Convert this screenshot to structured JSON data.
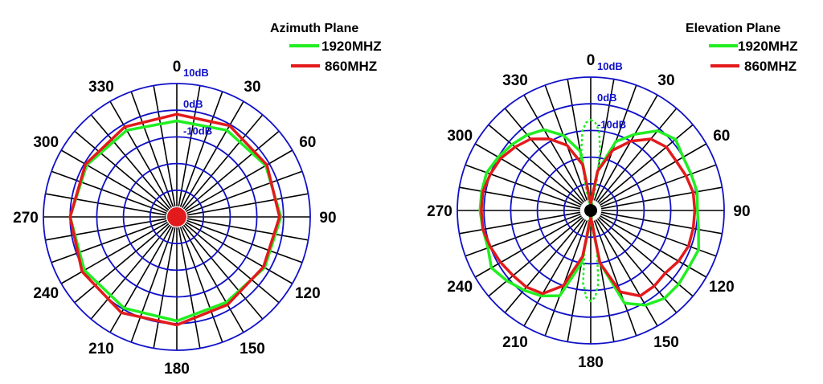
{
  "colors": {
    "ring": "#1010c8",
    "spoke": "#000000",
    "db_text": "#1010c8",
    "series_1920": "#22ee22",
    "series_860": "#e31a1c",
    "background": "#ffffff"
  },
  "chart_data": [
    {
      "type": "polar",
      "title": "Azimuth Plane",
      "angle_labels": [
        "0",
        "30",
        "60",
        "90",
        "120",
        "150",
        "180",
        "210",
        "240",
        "270",
        "300",
        "330"
      ],
      "radial_labels": [
        "10dB",
        "0dB",
        "-10dB"
      ],
      "series": [
        {
          "name": "1920MHZ",
          "color": "#22ee22",
          "style": "solid",
          "theta": [
            0,
            30,
            60,
            90,
            120,
            150,
            180,
            210,
            240,
            270,
            300,
            330
          ],
          "r": [
            0.72,
            0.75,
            0.77,
            0.78,
            0.76,
            0.74,
            0.78,
            0.79,
            0.8,
            0.8,
            0.78,
            0.75
          ]
        },
        {
          "name": "860MHZ",
          "color": "#e31a1c",
          "style": "solid",
          "theta": [
            0,
            30,
            60,
            90,
            120,
            150,
            180,
            210,
            240,
            270,
            300,
            330
          ],
          "r": [
            0.77,
            0.79,
            0.78,
            0.77,
            0.75,
            0.76,
            0.81,
            0.83,
            0.82,
            0.8,
            0.79,
            0.78
          ]
        }
      ],
      "center_dot": {
        "color": "#e31a1c"
      }
    },
    {
      "type": "polar",
      "title": "Elevation Plane",
      "angle_labels": [
        "0",
        "30",
        "60",
        "90",
        "120",
        "150",
        "180",
        "210",
        "240",
        "270",
        "300",
        "330"
      ],
      "radial_labels": [
        "10dB",
        "0dB",
        "-10dB"
      ],
      "series": [
        {
          "name": "1920MHZ",
          "color": "#22ee22",
          "style": "solid",
          "theta": [
            0,
            10,
            20,
            30,
            40,
            50,
            60,
            70,
            80,
            90,
            100,
            110,
            120,
            130,
            140,
            150,
            160,
            170,
            180,
            190,
            200,
            210,
            220,
            230,
            240,
            250,
            260,
            270,
            280,
            290,
            300,
            310,
            320,
            330,
            340,
            350,
            360
          ],
          "r": [
            0.05,
            0.3,
            0.55,
            0.66,
            0.78,
            0.83,
            0.8,
            0.8,
            0.81,
            0.8,
            0.82,
            0.86,
            0.85,
            0.86,
            0.86,
            0.82,
            0.74,
            0.4,
            0.06,
            0.4,
            0.68,
            0.74,
            0.78,
            0.82,
            0.86,
            0.82,
            0.82,
            0.83,
            0.83,
            0.83,
            0.8,
            0.77,
            0.74,
            0.7,
            0.6,
            0.45,
            0.05
          ]
        },
        {
          "name": "1920MHZ (dotted)",
          "color": "#22ee22",
          "style": "dotted",
          "theta": [
            0,
            3,
            6,
            9,
            12,
            15,
            168,
            171,
            174,
            177,
            180,
            183,
            186,
            189,
            192,
            195,
            348,
            351,
            354,
            357,
            360
          ],
          "r": [
            0.68,
            0.66,
            0.6,
            0.45,
            0.2,
            0.0,
            0.0,
            0.3,
            0.55,
            0.65,
            0.68,
            0.65,
            0.55,
            0.3,
            0.0,
            0.0,
            0.2,
            0.45,
            0.6,
            0.66,
            0.68
          ]
        },
        {
          "name": "860MHZ",
          "color": "#e31a1c",
          "style": "solid",
          "theta": [
            0,
            10,
            20,
            30,
            40,
            50,
            60,
            70,
            80,
            90,
            100,
            110,
            120,
            130,
            140,
            150,
            160,
            170,
            180,
            190,
            200,
            210,
            220,
            230,
            240,
            250,
            260,
            270,
            280,
            290,
            300,
            310,
            320,
            330,
            340,
            350,
            360
          ],
          "r": [
            0.05,
            0.3,
            0.48,
            0.6,
            0.7,
            0.74,
            0.74,
            0.76,
            0.78,
            0.78,
            0.78,
            0.78,
            0.76,
            0.73,
            0.74,
            0.74,
            0.65,
            0.4,
            0.05,
            0.35,
            0.6,
            0.72,
            0.75,
            0.76,
            0.78,
            0.8,
            0.82,
            0.82,
            0.82,
            0.8,
            0.78,
            0.74,
            0.7,
            0.62,
            0.52,
            0.35,
            0.05
          ]
        }
      ],
      "center_dot": {
        "color": "#000000"
      }
    }
  ],
  "legends": [
    {
      "title": "Azimuth Plane",
      "items": [
        {
          "label": "1920MHZ",
          "color": "#22ee22"
        },
        {
          "label": "860MHZ",
          "color": "#e31a1c"
        }
      ]
    },
    {
      "title": "Elevation Plane",
      "items": [
        {
          "label": "1920MHZ",
          "color": "#22ee22"
        },
        {
          "label": "860MHZ",
          "color": "#e31a1c"
        }
      ]
    }
  ]
}
